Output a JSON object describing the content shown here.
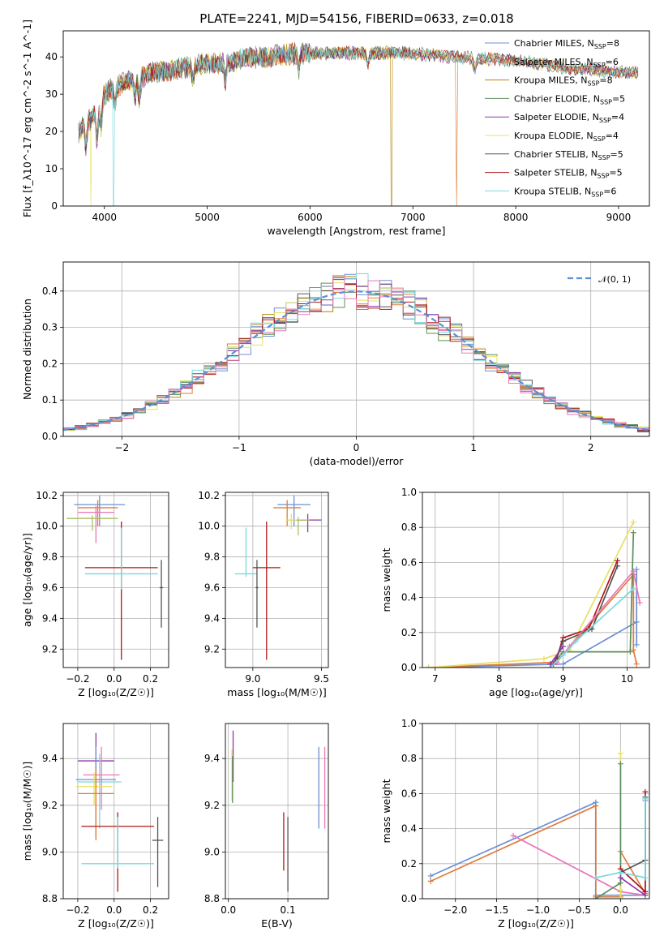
{
  "title": "PLATE=2241, MJD=54156, FIBERID=0633, z=0.018",
  "colors": {
    "Chabrier MILES": "#6d8fd6",
    "Salpeter MILES": "#e07b39",
    "Kroupa MILES": "#b8860b",
    "Chabrier ELODIE": "#5b8f5b",
    "Salpeter ELODIE": "#8e3aa8",
    "Kroupa ELODIE": "#e8e062",
    "Chabrier STELIB": "#555555",
    "Salpeter STELIB": "#b01818",
    "Kroupa STELIB": "#79d9df",
    "pink": "#e878b8",
    "green2": "#a8c060",
    "gauss": "#5b8fd6"
  },
  "chart_data": [
    {
      "id": "spectrum",
      "type": "line",
      "xlabel": "wavelength [Angstrom, rest frame]",
      "ylabel": "Flux [f_λ10^-17 erg cm^-2 s^-1 A^-1]",
      "xlim": [
        3600,
        9300
      ],
      "ylim": [
        0,
        47
      ],
      "xticks": [
        4000,
        5000,
        6000,
        7000,
        8000,
        9000
      ],
      "yticks": [
        0,
        10,
        20,
        30,
        40
      ],
      "legend_position": "upper right",
      "legend": [
        {
          "label": "Chabrier MILES, N",
          "sub": "SSP",
          "suffix": "=8",
          "color": "Chabrier MILES"
        },
        {
          "label": "Salpeter MILES, N",
          "sub": "SSP",
          "suffix": "=6",
          "color": "Salpeter MILES"
        },
        {
          "label": "Kroupa MILES, N",
          "sub": "SSP",
          "suffix": "=8",
          "color": "Kroupa MILES"
        },
        {
          "label": "Chabrier ELODIE, N",
          "sub": "SSP",
          "suffix": "=5",
          "color": "Chabrier ELODIE"
        },
        {
          "label": "Salpeter ELODIE, N",
          "sub": "SSP",
          "suffix": "=4",
          "color": "Salpeter ELODIE"
        },
        {
          "label": "Kroupa ELODIE, N",
          "sub": "SSP",
          "suffix": "=4",
          "color": "Kroupa ELODIE"
        },
        {
          "label": "Chabrier STELIB, N",
          "sub": "SSP",
          "suffix": "=5",
          "color": "Chabrier STELIB"
        },
        {
          "label": "Salpeter STELIB, N",
          "sub": "SSP",
          "suffix": "=5",
          "color": "Salpeter STELIB"
        },
        {
          "label": "Kroupa STELIB, N",
          "sub": "SSP",
          "suffix": "=6",
          "color": "Kroupa STELIB"
        }
      ],
      "continuum": [
        [
          3750,
          20
        ],
        [
          3900,
          24
        ],
        [
          4000,
          30
        ],
        [
          4100,
          32
        ],
        [
          4300,
          34
        ],
        [
          4500,
          36
        ],
        [
          5000,
          38
        ],
        [
          5500,
          40
        ],
        [
          6000,
          41
        ],
        [
          6500,
          41
        ],
        [
          7000,
          41
        ],
        [
          7400,
          40
        ],
        [
          8000,
          39
        ],
        [
          8500,
          37
        ],
        [
          9000,
          36
        ],
        [
          9200,
          36
        ]
      ],
      "dips": [
        [
          3820,
          6
        ],
        [
          3930,
          8
        ],
        [
          3968,
          7
        ],
        [
          4102,
          5
        ],
        [
          4300,
          5
        ],
        [
          4340,
          6
        ],
        [
          4861,
          4
        ],
        [
          5175,
          5
        ],
        [
          5890,
          4
        ],
        [
          6563,
          3
        ],
        [
          7600,
          3
        ]
      ],
      "drops": [
        {
          "series": "Kroupa ELODIE",
          "x": 3870
        },
        {
          "series": "Kroupa STELIB",
          "x": 4090
        },
        {
          "series": "Kroupa MILES",
          "x": 6790
        },
        {
          "series": "Salpeter MILES",
          "x": 7420
        }
      ]
    },
    {
      "id": "residuals",
      "type": "step",
      "xlabel": "(data-model)/error",
      "ylabel": "Normed distribution",
      "xlim": [
        -2.5,
        2.5
      ],
      "ylim": [
        0,
        0.48
      ],
      "xticks": [
        -2,
        -1,
        0,
        1,
        2
      ],
      "yticks": [
        0.0,
        0.1,
        0.2,
        0.3,
        0.4
      ],
      "grid": true,
      "legend_position": "upper right",
      "legend_label": "𝒩(0, 1)",
      "gauss_sigma": 1.0,
      "bins": 50
    },
    {
      "id": "age_vs_Z",
      "type": "errorbar",
      "xlabel": "Z [log₁₀(Z/Z☉)]",
      "ylabel": "age  [log₁₀(age/yr)]",
      "xlim": [
        -0.28,
        0.3
      ],
      "ylim": [
        9.08,
        10.22
      ],
      "xticks": [
        -0.2,
        0.0,
        0.2
      ],
      "yticks": [
        9.2,
        9.4,
        9.6,
        9.8,
        10.0,
        10.2
      ],
      "grid": true,
      "points": [
        {
          "s": "Chabrier MILES",
          "x": -0.08,
          "y": 10.14,
          "xe": 0.14,
          "ye": [
            0.14,
            0.06
          ]
        },
        {
          "s": "Salpeter MILES",
          "x": -0.09,
          "y": 10.12,
          "xe": 0.11,
          "ye": [
            0.12,
            0.05
          ]
        },
        {
          "s": "pink",
          "x": -0.1,
          "y": 10.09,
          "xe": 0.1,
          "ye": [
            0.2,
            0.04
          ]
        },
        {
          "s": "green2",
          "x": -0.12,
          "y": 10.05,
          "xe": 0.14,
          "ye": [
            0.08,
            0.02
          ]
        },
        {
          "s": "Salpeter STELIB",
          "x": 0.04,
          "y": 9.73,
          "xe": 0.2,
          "ye": [
            0.6,
            0.3
          ]
        },
        {
          "s": "Kroupa STELIB",
          "x": 0.04,
          "y": 9.69,
          "xe": 0.2,
          "ye": [
            0.1,
            0.3
          ]
        },
        {
          "s": "Chabrier STELIB",
          "x": 0.26,
          "y": 9.6,
          "xe": 0.01,
          "ye": [
            0.26,
            0.18
          ]
        }
      ]
    },
    {
      "id": "age_vs_mass",
      "type": "errorbar",
      "xlabel": "mass [log₁₀(M/M☉)]",
      "ylabel": "",
      "xlim": [
        8.8,
        9.55
      ],
      "ylim": [
        9.08,
        10.22
      ],
      "xticks": [
        9.0,
        9.5
      ],
      "yticks": [
        9.2,
        9.4,
        9.6,
        9.8,
        10.0,
        10.2
      ],
      "grid": true,
      "points": [
        {
          "s": "Chabrier MILES",
          "x": 9.3,
          "y": 10.14,
          "xe": 0.12,
          "ye": [
            0.14,
            0.06
          ]
        },
        {
          "s": "Salpeter MILES",
          "x": 9.25,
          "y": 10.12,
          "xe": 0.1,
          "ye": [
            0.12,
            0.05
          ]
        },
        {
          "s": "Salpeter ELODIE",
          "x": 9.4,
          "y": 10.04,
          "xe": 0.1,
          "ye": [
            0.08,
            0.04
          ]
        },
        {
          "s": "green2",
          "x": 9.33,
          "y": 10.04,
          "xe": 0.08,
          "ye": [
            0.1,
            0.02
          ]
        },
        {
          "s": "Kroupa ELODIE",
          "x": 9.28,
          "y": 10.04,
          "xe": 0.04,
          "ye": [
            0.06,
            0.04
          ]
        },
        {
          "s": "Salpeter STELIB",
          "x": 9.1,
          "y": 9.73,
          "xe": 0.1,
          "ye": [
            0.6,
            0.3
          ]
        },
        {
          "s": "Kroupa STELIB",
          "x": 8.95,
          "y": 9.69,
          "xe": 0.08,
          "ye": [
            0.02,
            0.3
          ]
        },
        {
          "s": "Chabrier STELIB",
          "x": 9.03,
          "y": 9.6,
          "xe": 0.01,
          "ye": [
            0.26,
            0.18
          ]
        }
      ]
    },
    {
      "id": "mass_weight_vs_age",
      "type": "line",
      "xlabel": "age  [log₁₀(age/yr)]",
      "ylabel": "mass weight",
      "xlim": [
        6.8,
        10.35
      ],
      "ylim": [
        0,
        1.0
      ],
      "xticks": [
        7,
        8,
        9,
        10
      ],
      "yticks": [
        0.0,
        0.2,
        0.4,
        0.6,
        0.8,
        1.0
      ],
      "grid": true,
      "series": [
        {
          "s": "Chabrier MILES",
          "x": [
            6.9,
            9.0,
            10.15,
            10.15,
            10.15
          ],
          "y": [
            0.0,
            0.02,
            0.26,
            0.56,
            0.13
          ]
        },
        {
          "s": "Salpeter MILES",
          "x": [
            6.9,
            8.9,
            10.1,
            10.1,
            10.15
          ],
          "y": [
            0.0,
            0.03,
            0.53,
            0.1,
            0.02
          ]
        },
        {
          "s": "Kroupa ELODIE",
          "x": [
            6.9,
            8.7,
            9.1,
            10.1
          ],
          "y": [
            0.0,
            0.05,
            0.1,
            0.83
          ]
        },
        {
          "s": "Chabrier ELODIE",
          "x": [
            8.8,
            9.0,
            10.05,
            10.1
          ],
          "y": [
            0.0,
            0.09,
            0.09,
            0.77
          ]
        },
        {
          "s": "Salpeter STELIB",
          "x": [
            8.9,
            9.0,
            9.4,
            9.85
          ],
          "y": [
            0.05,
            0.17,
            0.22,
            0.61
          ]
        },
        {
          "s": "Chabrier STELIB",
          "x": [
            8.85,
            9.0,
            9.45,
            9.85
          ],
          "y": [
            0.02,
            0.15,
            0.22,
            0.58
          ]
        },
        {
          "s": "pink",
          "x": [
            8.9,
            9.1,
            10.1,
            10.2
          ],
          "y": [
            0.03,
            0.12,
            0.55,
            0.37
          ]
        },
        {
          "s": "Kroupa STELIB",
          "x": [
            8.8,
            9.0,
            9.2,
            10.1
          ],
          "y": [
            0.0,
            0.07,
            0.15,
            0.45
          ]
        },
        {
          "s": "Salpeter ELODIE",
          "x": [
            8.8,
            9.0
          ],
          "y": [
            0.02,
            0.12
          ]
        }
      ]
    },
    {
      "id": "mass_vs_Z",
      "type": "errorbar",
      "xlabel": "Z [log₁₀(Z/Z☉)]",
      "ylabel": "mass [log₁₀(M/M☉)]",
      "xlim": [
        -0.28,
        0.3
      ],
      "ylim": [
        8.8,
        9.55
      ],
      "xticks": [
        -0.2,
        0.0,
        0.2
      ],
      "yticks": [
        8.8,
        9.0,
        9.2,
        9.4
      ],
      "grid": true,
      "points": [
        {
          "s": "Salpeter ELODIE",
          "x": -0.1,
          "y": 9.39,
          "xe": 0.1,
          "ye": [
            0.05,
            0.12
          ]
        },
        {
          "s": "Kroupa STELIB",
          "x": -0.08,
          "y": 9.3,
          "xe": 0.12,
          "ye": [
            0.2,
            0.12
          ]
        },
        {
          "s": "Chabrier MILES",
          "x": -0.1,
          "y": 9.31,
          "xe": 0.11,
          "ye": [
            0.25,
            0.14
          ]
        },
        {
          "s": "pink",
          "x": -0.07,
          "y": 9.33,
          "xe": 0.1,
          "ye": [
            0.15,
            0.12
          ]
        },
        {
          "s": "Kroupa ELODIE",
          "x": -0.11,
          "y": 9.28,
          "xe": 0.1,
          "ye": [
            0.08,
            0.06
          ]
        },
        {
          "s": "Salpeter MILES",
          "x": -0.1,
          "y": 9.25,
          "xe": 0.1,
          "ye": [
            0.2,
            0.1
          ]
        },
        {
          "s": "Salpeter STELIB",
          "x": 0.02,
          "y": 9.11,
          "xe": 0.2,
          "ye": [
            0.28,
            0.06
          ]
        },
        {
          "s": "Chabrier STELIB",
          "x": 0.24,
          "y": 9.05,
          "xe": 0.03,
          "ye": [
            0.2,
            0.1
          ]
        },
        {
          "s": "Kroupa STELIB",
          "x": 0.02,
          "y": 8.95,
          "xe": 0.2,
          "ye": [
            0.02,
            0.2
          ]
        }
      ]
    },
    {
      "id": "mass_vs_ebv",
      "type": "errorbar",
      "xlabel": "E(B-V)",
      "ylabel": "",
      "xlim": [
        -0.005,
        0.168
      ],
      "ylim": [
        8.8,
        9.55
      ],
      "xticks": [
        0.0,
        0.1
      ],
      "yticks": [
        8.8,
        9.0,
        9.2,
        9.4
      ],
      "grid": true,
      "points": [
        {
          "s": "Salpeter ELODIE",
          "x": 0.008,
          "y": 9.42,
          "xe": 0,
          "ye": [
            0.12,
            0.1
          ]
        },
        {
          "s": "Kroupa ELODIE",
          "x": 0.006,
          "y": 9.32,
          "xe": 0,
          "ye": [
            0.1,
            0.12
          ]
        },
        {
          "s": "Chabrier ELODIE",
          "x": 0.007,
          "y": 9.31,
          "xe": 0,
          "ye": [
            0.1,
            0.1
          ]
        },
        {
          "s": "Salpeter STELIB",
          "x": 0.093,
          "y": 9.05,
          "xe": 0,
          "ye": [
            0.13,
            0.12
          ]
        },
        {
          "s": "Chabrier STELIB",
          "x": 0.1,
          "y": 8.99,
          "xe": 0,
          "ye": [
            0.16,
            0.16
          ]
        },
        {
          "s": "Chabrier MILES",
          "x": 0.152,
          "y": 9.3,
          "xe": 0,
          "ye": [
            0.2,
            0.15
          ]
        },
        {
          "s": "pink",
          "x": 0.162,
          "y": 9.28,
          "xe": 0,
          "ye": [
            0.18,
            0.17
          ]
        }
      ]
    },
    {
      "id": "mass_weight_vs_Z",
      "type": "line",
      "xlabel": "Z [log₁₀(Z/Z☉)]",
      "ylabel": "mass weight",
      "xlim": [
        -2.4,
        0.35
      ],
      "ylim": [
        0,
        1.0
      ],
      "xticks": [
        -2.0,
        -1.5,
        -1.0,
        -0.5,
        0.0
      ],
      "yticks": [
        0.0,
        0.2,
        0.4,
        0.6,
        0.8,
        1.0
      ],
      "grid": true,
      "series": [
        {
          "s": "Chabrier MILES",
          "x": [
            -2.3,
            -0.3,
            -0.3,
            0.3,
            0.3
          ],
          "y": [
            0.13,
            0.55,
            0.02,
            0.02,
            0.56
          ]
        },
        {
          "s": "Salpeter MILES",
          "x": [
            -2.3,
            -0.3,
            -0.3,
            0.0,
            0.0,
            0.3
          ],
          "y": [
            0.1,
            0.53,
            0.01,
            0.01,
            0.27,
            0.03
          ]
        },
        {
          "s": "pink",
          "x": [
            -1.3,
            0.0,
            0.3
          ],
          "y": [
            0.36,
            0.04,
            0.02
          ]
        },
        {
          "s": "Kroupa ELODIE",
          "x": [
            0.0,
            0.0,
            0.0
          ],
          "y": [
            0.0,
            0.83,
            0.05
          ]
        },
        {
          "s": "Chabrier ELODIE",
          "x": [
            -0.3,
            0.0,
            0.0
          ],
          "y": [
            0.0,
            0.09,
            0.77
          ]
        },
        {
          "s": "Salpeter STELIB",
          "x": [
            0.0,
            0.3,
            0.3
          ],
          "y": [
            0.17,
            0.04,
            0.61
          ]
        },
        {
          "s": "Chabrier STELIB",
          "x": [
            0.0,
            0.3,
            0.3
          ],
          "y": [
            0.15,
            0.22,
            0.58
          ]
        },
        {
          "s": "Kroupa STELIB",
          "x": [
            -0.3,
            0.0,
            0.3,
            0.3
          ],
          "y": [
            0.12,
            0.15,
            0.12,
            0.57
          ]
        },
        {
          "s": "Salpeter ELODIE",
          "x": [
            0.0,
            0.3
          ],
          "y": [
            0.12,
            0.02
          ]
        }
      ]
    }
  ]
}
